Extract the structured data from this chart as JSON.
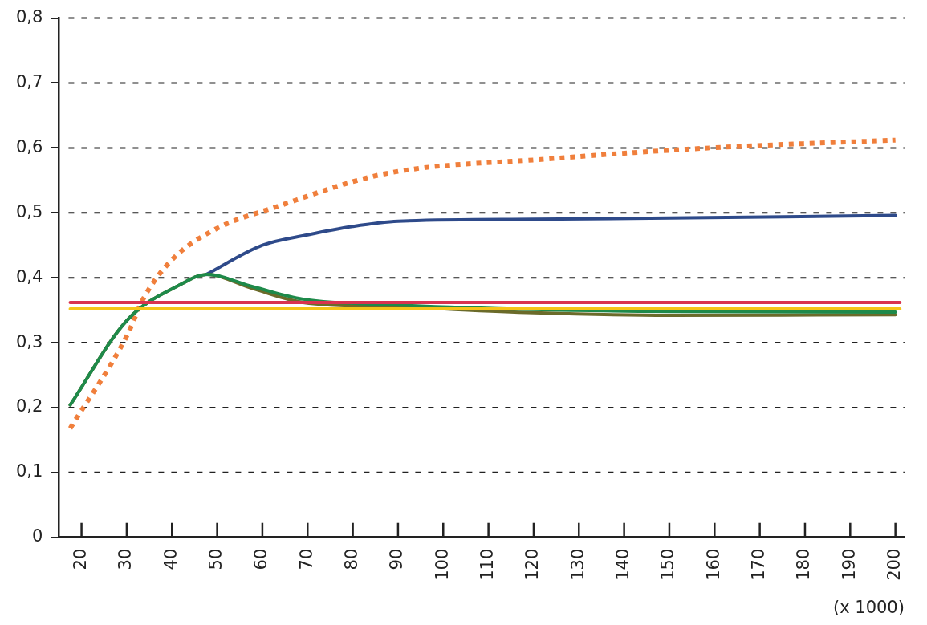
{
  "chart_data": {
    "type": "line",
    "xlabel": "(x 1000)",
    "xlim": [
      15,
      202
    ],
    "xticks": [
      20,
      30,
      40,
      50,
      60,
      70,
      80,
      90,
      100,
      110,
      120,
      130,
      140,
      150,
      160,
      170,
      180,
      190,
      200
    ],
    "ylim": [
      0,
      0.8
    ],
    "yticks": [
      {
        "value": 0,
        "label": "0"
      },
      {
        "value": 0.1,
        "label": "0,1"
      },
      {
        "value": 0.2,
        "label": "0,2"
      },
      {
        "value": 0.3,
        "label": "0,3"
      },
      {
        "value": 0.4,
        "label": "0,4"
      },
      {
        "value": 0.5,
        "label": "0,5"
      },
      {
        "value": 0.6,
        "label": "0,6"
      },
      {
        "value": 0.7,
        "label": "0,7"
      },
      {
        "value": 0.8,
        "label": "0,8"
      }
    ],
    "grid": "y",
    "legend": false,
    "marker": "none",
    "series": [
      {
        "color": "#d9334f",
        "line_style": "solid",
        "x": [
          17.5,
          201
        ],
        "values": [
          0.362,
          0.362
        ]
      },
      {
        "color": "#f5c518",
        "line_style": "solid",
        "x": [
          17.5,
          201
        ],
        "values": [
          0.352,
          0.352
        ]
      },
      {
        "color": "#1e8a4a",
        "line_style": "solid",
        "x": [
          17.5,
          30,
          42,
          47.6,
          58,
          69,
          90,
          120,
          150,
          200
        ],
        "values": [
          0.204,
          0.334,
          0.39,
          0.405,
          0.386,
          0.367,
          0.358,
          0.351,
          0.348,
          0.347
        ]
      },
      {
        "color": "#6b6b2a",
        "line_style": "solid",
        "x": [
          17.5,
          30,
          42,
          47.6,
          58,
          69,
          90,
          120,
          150,
          200
        ],
        "values": [
          0.204,
          0.334,
          0.39,
          0.405,
          0.383,
          0.362,
          0.355,
          0.346,
          0.342,
          0.343
        ]
      },
      {
        "color": "#2e4a8a",
        "line_style": "solid",
        "x": [
          47.6,
          60,
          70,
          80,
          90,
          120,
          150,
          200
        ],
        "values": [
          0.405,
          0.45,
          0.466,
          0.479,
          0.487,
          0.49,
          0.492,
          0.496
        ]
      },
      {
        "color": "#f07f3c",
        "line_style": "dotted",
        "x": [
          17.5,
          30,
          33.7,
          39.9,
          49.4,
          63,
          87,
          123,
          159,
          200
        ],
        "values": [
          0.168,
          0.31,
          0.368,
          0.427,
          0.474,
          0.509,
          0.56,
          0.583,
          0.6,
          0.612
        ]
      }
    ]
  }
}
